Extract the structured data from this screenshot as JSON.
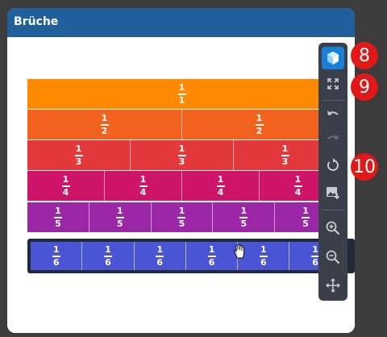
{
  "window": {
    "title": "Brüche"
  },
  "fraction_rows": [
    {
      "numerator": "1",
      "denominator": "1",
      "count": 1,
      "color": "#ff8a00"
    },
    {
      "numerator": "1",
      "denominator": "2",
      "count": 2,
      "color": "#f0621e"
    },
    {
      "numerator": "1",
      "denominator": "3",
      "count": 3,
      "color": "#e3383c"
    },
    {
      "numerator": "1",
      "denominator": "4",
      "count": 4,
      "color": "#cf1569"
    },
    {
      "numerator": "1",
      "denominator": "5",
      "count": 5,
      "color": "#9b27a6"
    },
    {
      "numerator": "1",
      "denominator": "6",
      "count": 6,
      "color": "#4a55d6"
    }
  ],
  "toolbar": {
    "items": [
      {
        "name": "3d-view-button",
        "icon": "cube-icon",
        "active": true
      },
      {
        "name": "fullscreen-button",
        "icon": "expand-icon"
      },
      {
        "name": "undo-button",
        "icon": "undo-icon"
      },
      {
        "name": "redo-button",
        "icon": "redo-icon"
      },
      {
        "name": "reset-button",
        "icon": "reset-icon"
      },
      {
        "name": "save-image-button",
        "icon": "image-download-icon"
      },
      {
        "name": "zoom-in-button",
        "icon": "zoom-in-icon"
      },
      {
        "name": "zoom-out-button",
        "icon": "zoom-out-icon"
      },
      {
        "name": "move-button",
        "icon": "move-icon"
      }
    ]
  },
  "badges": [
    "8",
    "9",
    "10"
  ],
  "colors": {
    "title_bar": "#1f5f9a",
    "toolbar": "#3b3f4a",
    "active_tool": "#1a7fd9",
    "badge": "#e01818"
  }
}
